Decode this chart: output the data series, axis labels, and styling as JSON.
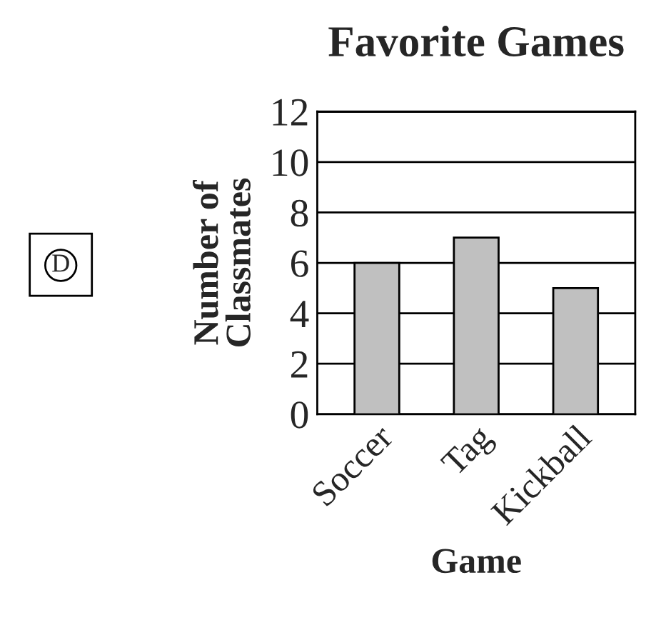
{
  "chart_data": {
    "type": "bar",
    "title": "Favorite Games",
    "xlabel": "Game",
    "ylabel": "Number of\nClassmates",
    "categories": [
      "Soccer",
      "Tag",
      "Kickball"
    ],
    "values": [
      6,
      7,
      5
    ],
    "color": "#c0c0c0",
    "ylim": [
      0,
      12
    ],
    "yticks": [
      0,
      2,
      4,
      6,
      8,
      10,
      12
    ],
    "grid": "y",
    "annotations": [
      "D"
    ]
  }
}
